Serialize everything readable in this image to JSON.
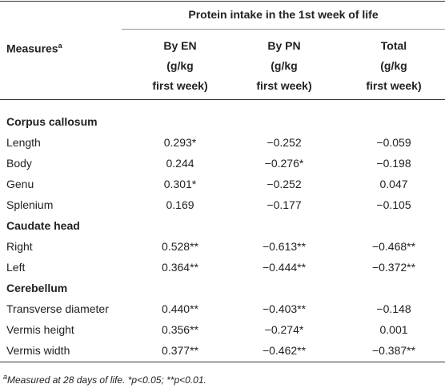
{
  "table": {
    "group_header": "Protein intake in the 1st week of life",
    "columns": [
      {
        "lines": [
          "Measures"
        ],
        "sup": "a"
      },
      {
        "lines": [
          "By EN",
          "(g/kg",
          "first week)"
        ]
      },
      {
        "lines": [
          "By PN",
          "(g/kg",
          "first week)"
        ]
      },
      {
        "lines": [
          "Total",
          "(g/kg",
          "first week)"
        ]
      }
    ],
    "sections": [
      {
        "title": "Corpus callosum",
        "rows": [
          [
            "Length",
            "0.293*",
            "−0.252",
            "−0.059"
          ],
          [
            "Body",
            "0.244",
            "−0.276*",
            "−0.198"
          ],
          [
            "Genu",
            "0.301*",
            "−0.252",
            "0.047"
          ],
          [
            "Splenium",
            "0.169",
            "−0.177",
            "−0.105"
          ]
        ]
      },
      {
        "title": "Caudate head",
        "rows": [
          [
            "Right",
            "0.528**",
            "−0.613**",
            "−0.468**"
          ],
          [
            "Left",
            "0.364**",
            "−0.444**",
            "−0.372**"
          ]
        ]
      },
      {
        "title": "Cerebellum",
        "rows": [
          [
            "Transverse diameter",
            "0.440**",
            "−0.403**",
            "−0.148"
          ],
          [
            "Vermis height",
            "0.356**",
            "−0.274*",
            "0.001"
          ],
          [
            "Vermis width",
            "0.377**",
            "−0.462**",
            "−0.387**"
          ]
        ]
      }
    ],
    "footnote": {
      "marker": "a",
      "text": "Measured at 28 days of life. *p<0.05; **p<0.01."
    }
  }
}
